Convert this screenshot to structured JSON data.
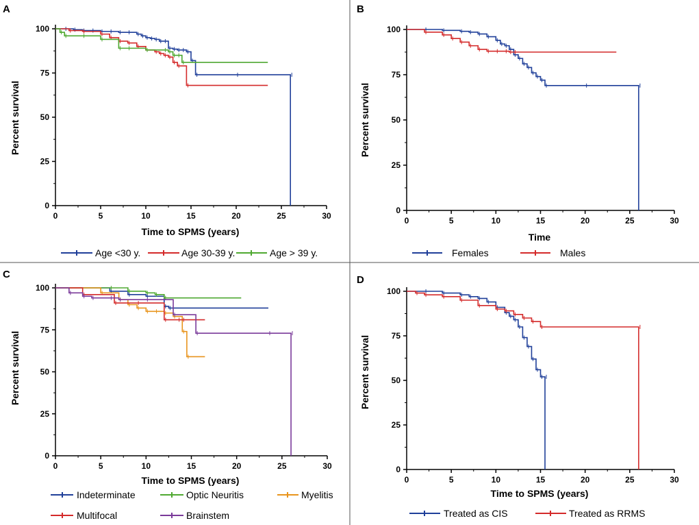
{
  "chart_data": [
    {
      "panel_label": "A",
      "type": "line",
      "chart_kind": "kaplan-meier",
      "xlabel": "Time to SPMS (years)",
      "ylabel": "Percent survival",
      "xlim": [
        0,
        30
      ],
      "ylim": [
        0,
        100
      ],
      "xticks": [
        "0",
        "5",
        "10",
        "15",
        "20",
        "25",
        "30"
      ],
      "yticks": [
        "0",
        "25",
        "50",
        "75",
        "100"
      ],
      "series": [
        {
          "name": "Age <30 y.",
          "color": "#1f3f99",
          "x": [
            0,
            1,
            2,
            3,
            4,
            5,
            6,
            7,
            8,
            9,
            9.5,
            10,
            10.5,
            11,
            11.5,
            12,
            12.5,
            13,
            13.5,
            14,
            14.5,
            15,
            15.5,
            20,
            26,
            26
          ],
          "y": [
            100,
            100,
            99.5,
            99,
            99,
            98.5,
            98.5,
            98,
            98,
            97,
            96,
            95,
            94.5,
            94,
            93,
            93,
            89,
            88.5,
            88,
            88,
            87,
            82,
            74,
            74,
            74,
            0
          ]
        },
        {
          "name": "Age 30-39 y.",
          "color": "#d42a2a",
          "x": [
            0,
            1.5,
            3,
            5,
            6,
            7,
            8,
            9,
            10,
            11,
            11.5,
            12,
            12.5,
            13,
            13.5,
            14.5,
            23.5
          ],
          "y": [
            100,
            99,
            98.5,
            97,
            95,
            93,
            92,
            90,
            88,
            87,
            86,
            85,
            84,
            81,
            79,
            68,
            68
          ]
        },
        {
          "name": "Age > 39 y.",
          "color": "#4ea830",
          "x": [
            0,
            0.5,
            1,
            3,
            5,
            7,
            8,
            10,
            12,
            12.5,
            13,
            13.5,
            14,
            23.5
          ],
          "y": [
            100,
            98,
            96,
            96,
            94,
            89,
            89,
            88,
            88,
            87,
            85,
            85,
            81,
            81
          ]
        }
      ]
    },
    {
      "panel_label": "B",
      "type": "line",
      "chart_kind": "kaplan-meier",
      "xlabel": "Time",
      "ylabel": "Percent survival",
      "xlim": [
        0,
        30
      ],
      "ylim": [
        0,
        100
      ],
      "xticks": [
        "0",
        "5",
        "10",
        "15",
        "20",
        "25",
        "30"
      ],
      "yticks": [
        "0",
        "25",
        "50",
        "75",
        "100"
      ],
      "series": [
        {
          "name": "Females",
          "color": "#1f3f99",
          "x": [
            0,
            2,
            4,
            6,
            7,
            8,
            9,
            10,
            10.5,
            11,
            11.5,
            12,
            12.5,
            13,
            13.5,
            14,
            14.5,
            15,
            15.5,
            20,
            26,
            26
          ],
          "y": [
            100,
            100,
            99.5,
            99,
            98.5,
            97.5,
            96,
            94,
            92,
            91,
            89,
            86,
            84,
            81,
            79,
            76,
            74,
            72,
            69,
            69,
            69,
            0
          ]
        },
        {
          "name": "Males",
          "color": "#d42a2a",
          "x": [
            0,
            2,
            4,
            5,
            6,
            7,
            8,
            9,
            10,
            11,
            11.5,
            12,
            23.5
          ],
          "y": [
            100,
            98.5,
            97,
            95,
            93,
            91,
            89,
            88,
            88,
            88,
            87.5,
            87.5,
            87.5
          ]
        }
      ]
    },
    {
      "panel_label": "C",
      "type": "line",
      "chart_kind": "kaplan-meier",
      "xlabel": "Time to SPMS (years)",
      "ylabel": "Percent survival",
      "xlim": [
        0,
        30
      ],
      "ylim": [
        0,
        100
      ],
      "xticks": [
        "0",
        "5",
        "10",
        "15",
        "20",
        "25",
        "30"
      ],
      "yticks": [
        "0",
        "25",
        "50",
        "75",
        "100"
      ],
      "series": [
        {
          "name": "Indeterminate",
          "color": "#1f3f99",
          "x": [
            0,
            6,
            8,
            10,
            12,
            12.5,
            23.5
          ],
          "y": [
            100,
            98,
            96,
            95,
            89,
            88,
            88
          ]
        },
        {
          "name": "Optic Neuritis",
          "color": "#4ea830",
          "x": [
            0,
            6,
            8,
            10,
            11,
            12,
            20.5
          ],
          "y": [
            100,
            100,
            98,
            97,
            96,
            94,
            94
          ]
        },
        {
          "name": "Myelitis",
          "color": "#e8941c",
          "x": [
            0,
            5,
            7,
            8,
            9,
            10,
            11,
            12,
            13,
            14,
            14.5,
            16.5
          ],
          "y": [
            100,
            97,
            93,
            90,
            88,
            86,
            86,
            85,
            83,
            74,
            59,
            59
          ]
        },
        {
          "name": "Multifocal",
          "color": "#d42a2a",
          "x": [
            0,
            3,
            6.5,
            9,
            12,
            13.5,
            14,
            16.5
          ],
          "y": [
            100,
            96,
            91,
            91,
            81,
            81,
            81,
            81
          ]
        },
        {
          "name": "Brainstem",
          "color": "#7a3a9a",
          "x": [
            0,
            1.5,
            3,
            4,
            6,
            7,
            10,
            13,
            15.5,
            23.5,
            26,
            26
          ],
          "y": [
            100,
            97,
            95,
            94,
            94,
            93,
            93,
            84,
            73,
            73,
            73,
            0
          ]
        }
      ]
    },
    {
      "panel_label": "D",
      "type": "line",
      "chart_kind": "kaplan-meier",
      "xlabel": "Time to SPMS (years)",
      "ylabel": "Percent survival",
      "xlim": [
        0,
        30
      ],
      "ylim": [
        0,
        100
      ],
      "xticks": [
        "0",
        "5",
        "10",
        "15",
        "20",
        "25",
        "30"
      ],
      "yticks": [
        "0",
        "25",
        "50",
        "75",
        "100"
      ],
      "series": [
        {
          "name": "Treated as CIS",
          "color": "#1f3f99",
          "x": [
            0,
            2,
            4,
            6,
            7,
            8,
            9,
            10,
            11,
            11.5,
            12,
            12.5,
            13,
            13.5,
            14,
            14.5,
            15,
            15.5,
            15.5
          ],
          "y": [
            100,
            100,
            99,
            98,
            97,
            96,
            94,
            91,
            88,
            86,
            84,
            80,
            74,
            69,
            62,
            56,
            52,
            52,
            0
          ]
        },
        {
          "name": "Treated as RRMS",
          "color": "#d42a2a",
          "x": [
            0,
            1,
            2,
            4,
            6,
            8,
            10,
            11,
            12,
            13,
            14,
            15,
            26,
            26
          ],
          "y": [
            100,
            99,
            98,
            97,
            95,
            92,
            90,
            89,
            87,
            85,
            83,
            80,
            80,
            0
          ]
        }
      ]
    }
  ]
}
